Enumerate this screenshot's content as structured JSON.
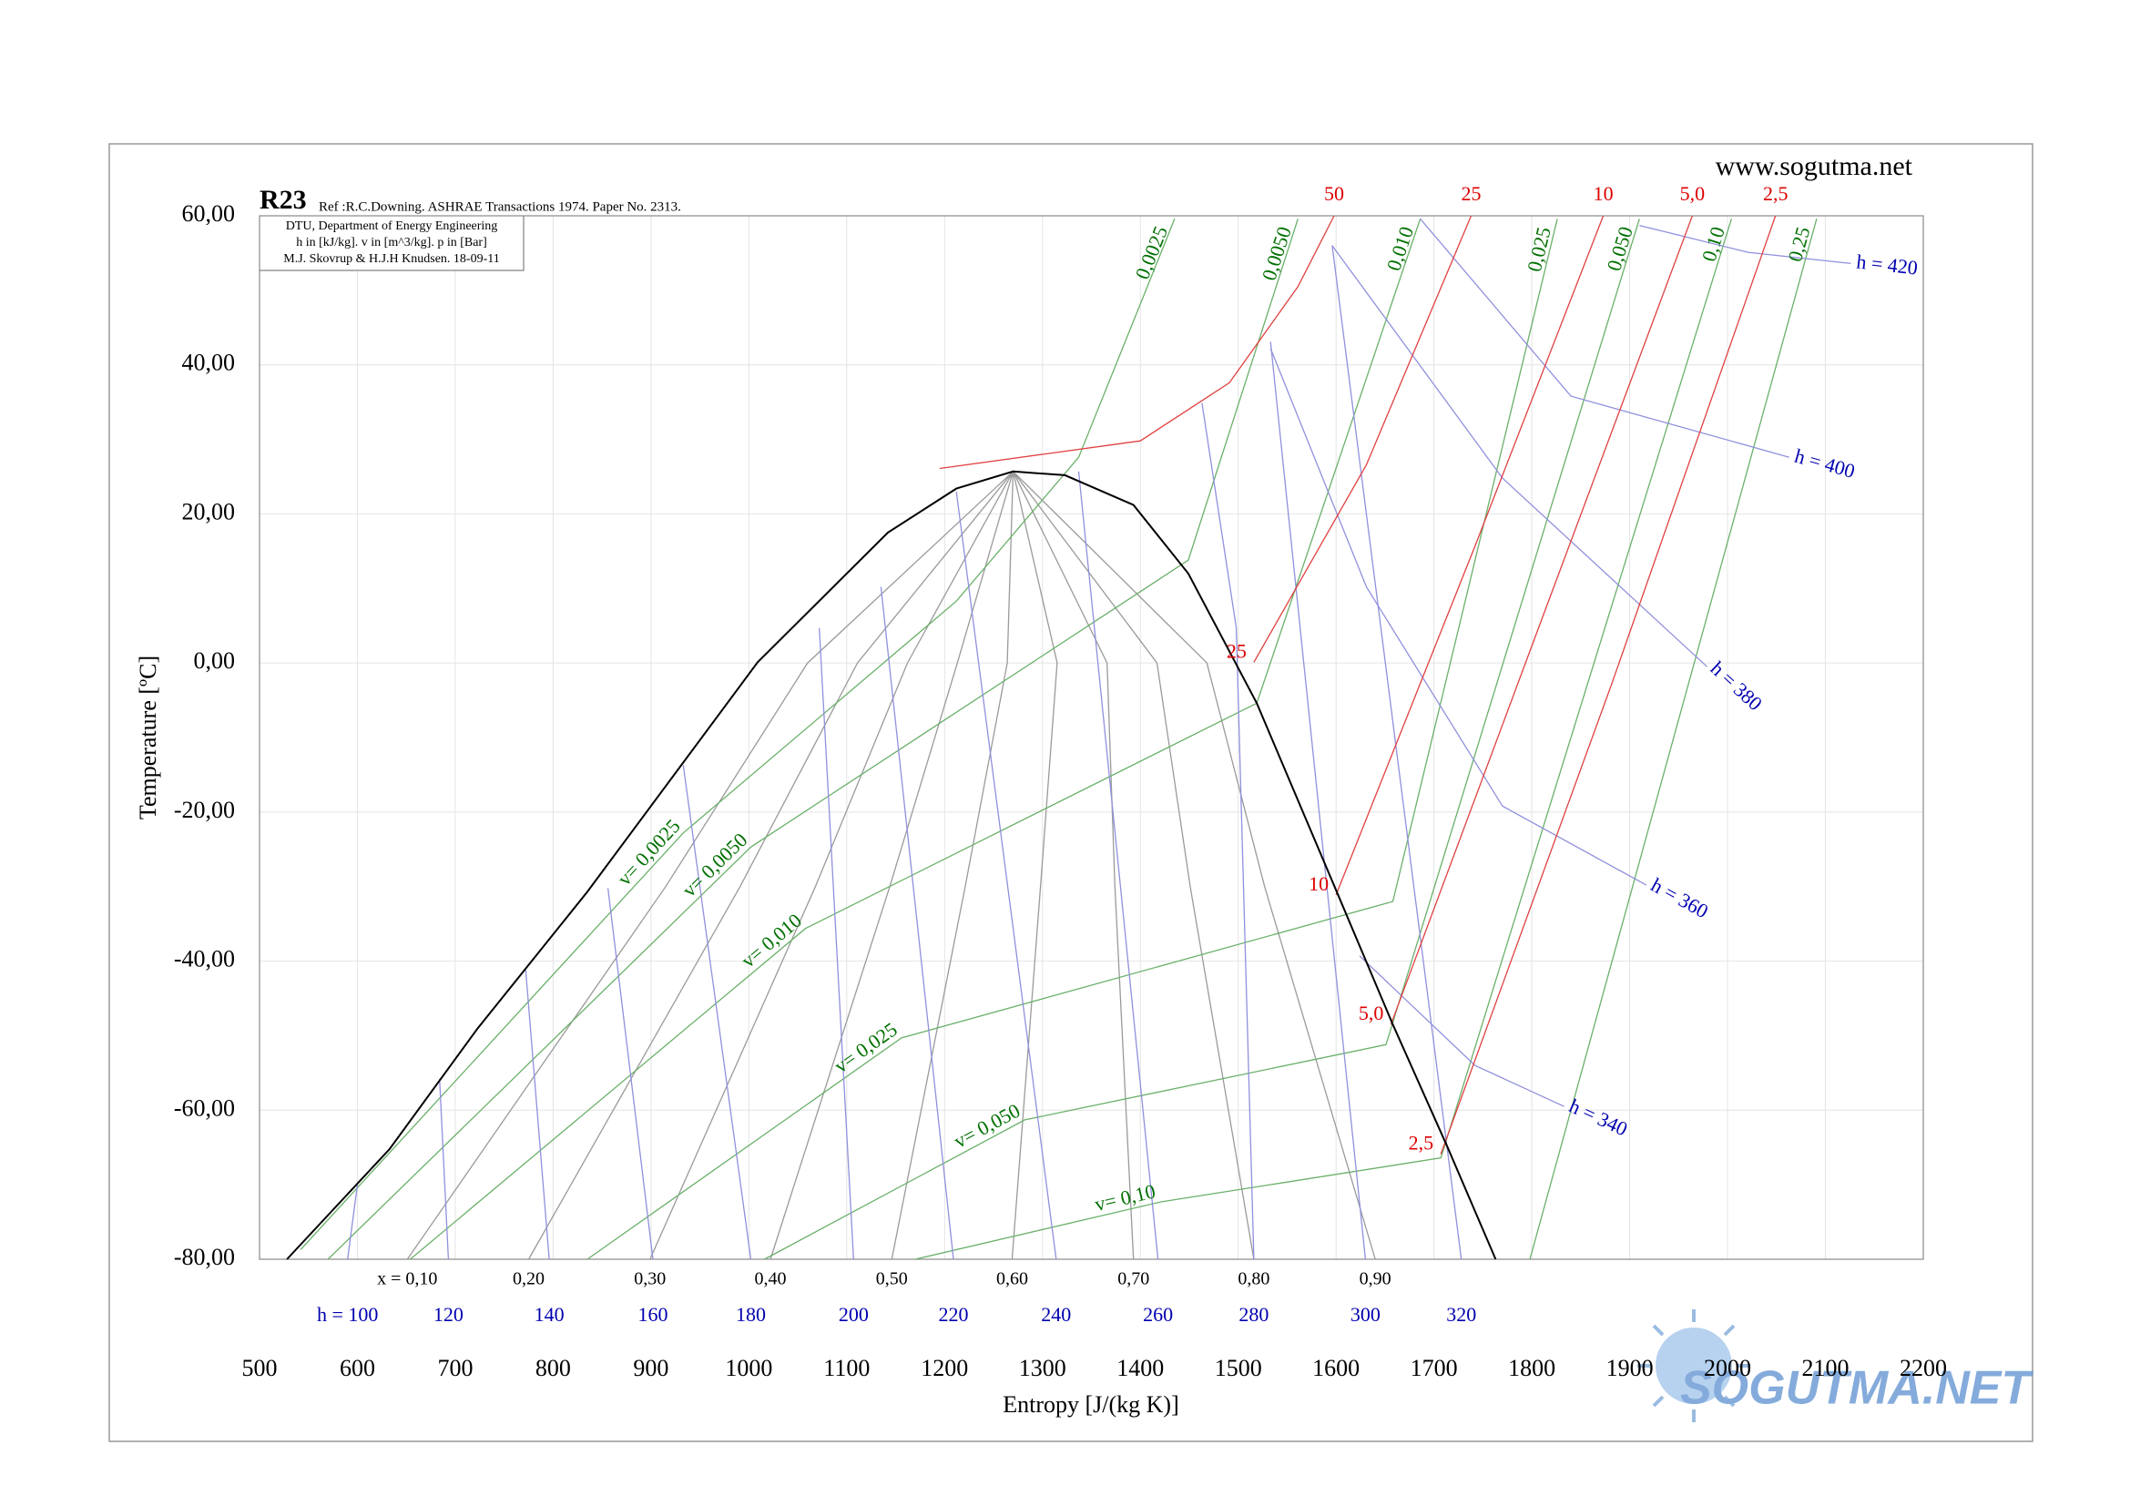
{
  "chart_data": {
    "type": "ts-diagram",
    "title": "R23",
    "reference": "Ref :R.C.Downing. ASHRAE Transactions 1974. Paper No. 2313.",
    "info": [
      "DTU, Department of Energy Engineering",
      "h in [kJ/kg]. v in [m^3/kg]. p in [Bar]",
      "M.J. Skovrup & H.J.H Knudsen. 18-09-11"
    ],
    "website": "www.sogutma.net",
    "watermark": "SOGUTMA.NET",
    "x_label": "Entropy [J/(kg K)]",
    "y_label": "Temperature [ºC]",
    "xlim": [
      500,
      2200
    ],
    "ylim": [
      -80,
      60
    ],
    "xticks": [
      500,
      600,
      700,
      800,
      900,
      1000,
      1100,
      1200,
      1300,
      1400,
      1500,
      1600,
      1700,
      1800,
      1900,
      2000,
      2100,
      2200
    ],
    "yticks": [
      {
        "value": -80,
        "label": "-80,00"
      },
      {
        "value": -60,
        "label": "-60,00"
      },
      {
        "value": -40,
        "label": "-40,00"
      },
      {
        "value": -20,
        "label": "-20,00"
      },
      {
        "value": 0,
        "label": "0,00"
      },
      {
        "value": 20,
        "label": "20,00"
      },
      {
        "value": 40,
        "label": "40,00"
      },
      {
        "value": 60,
        "label": "60,00"
      }
    ],
    "grid": true,
    "saturation": {
      "color": "#000000",
      "x": [
        528,
        633,
        723,
        835,
        1009,
        1142,
        1212,
        1270,
        1323,
        1393,
        1449,
        1519,
        1602,
        1658,
        1714,
        1763
      ],
      "y": [
        -80,
        -65.2,
        -49.0,
        -30.7,
        0.1,
        17.5,
        23.4,
        25.7,
        25.2,
        21.2,
        12.0,
        -5.4,
        -31.1,
        -48.5,
        -65.0,
        -80
      ]
    },
    "quality_lines": {
      "color": "#9a9a9a",
      "label_color": "#000000",
      "lines": [
        {
          "label": "x = 0,10",
          "x": [
            1270,
            1060,
            915,
            651
          ],
          "y": [
            25.7,
            0,
            -30,
            -80
          ]
        },
        {
          "label": "0,20",
          "x": [
            1270,
            1111,
            991,
            775
          ],
          "y": [
            25.7,
            0,
            -30,
            -80
          ]
        },
        {
          "label": "0,30",
          "x": [
            1270,
            1162,
            1068,
            899
          ],
          "y": [
            25.7,
            0,
            -30,
            -80
          ]
        },
        {
          "label": "0,40",
          "x": [
            1270,
            1213,
            1144,
            1022
          ],
          "y": [
            25.7,
            0,
            -30,
            -80
          ]
        },
        {
          "label": "0,50",
          "x": [
            1270,
            1264,
            1221,
            1146
          ],
          "y": [
            25.7,
            0,
            -30,
            -80
          ]
        },
        {
          "label": "0,60",
          "x": [
            1270,
            1315,
            1298,
            1269
          ],
          "y": [
            25.7,
            0,
            -30,
            -80
          ]
        },
        {
          "label": "0,70",
          "x": [
            1270,
            1366,
            1374,
            1393
          ],
          "y": [
            25.7,
            0,
            -30,
            -80
          ]
        },
        {
          "label": "0,80",
          "x": [
            1270,
            1417,
            1451,
            1516
          ],
          "y": [
            25.7,
            0,
            -30,
            -80
          ]
        },
        {
          "label": "0,90",
          "x": [
            1270,
            1468,
            1527,
            1640
          ],
          "y": [
            25.7,
            0,
            -30,
            -80
          ]
        }
      ]
    },
    "isobars": {
      "color": "#e04040",
      "label_color": "#dd0000",
      "lines": [
        {
          "top_label": "50",
          "x": [
            1195,
            1400,
            1491,
            1561,
            1598
          ],
          "y": [
            26.1,
            29.8,
            37.6,
            50.5,
            60
          ]
        },
        {
          "label": "25",
          "top_label": "25",
          "x": [
            1516,
            1631,
            1738
          ],
          "y": [
            0.1,
            26.6,
            60
          ]
        },
        {
          "label": "10",
          "top_label": "10",
          "x": [
            1600,
            1742,
            1873
          ],
          "y": [
            -31.1,
            15.7,
            60
          ]
        },
        {
          "label": "5,0",
          "top_label": "5,0",
          "x": [
            1656,
            1812,
            1964
          ],
          "y": [
            -48.5,
            6.5,
            60
          ]
        },
        {
          "label": "2,5",
          "top_label": "2,5",
          "x": [
            1707,
            1882,
            2049
          ],
          "y": [
            -65.9,
            -2.7,
            60
          ]
        }
      ]
    },
    "isochores": {
      "color": "#6ab06a",
      "label_color": "#007000",
      "lines": [
        {
          "label": "v= 0,0025",
          "top_label": "0,0025",
          "x": [
            542,
            933,
            1212,
            1337,
            1435
          ],
          "y": [
            -78.7,
            -22.8,
            8.3,
            27.6,
            59.6
          ]
        },
        {
          "label": "v= 0,0050",
          "top_label": "0,0050",
          "x": [
            570,
            1002,
            1449,
            1561
          ],
          "y": [
            -80,
            -24.7,
            13.8,
            59.6
          ]
        },
        {
          "label": "v= 0,010",
          "top_label": "0,010",
          "x": [
            654,
            1058,
            1519,
            1686
          ],
          "y": [
            -80,
            -35.6,
            -5.4,
            59.6
          ]
        },
        {
          "label": "v= 0,025",
          "top_label": "0,025",
          "x": [
            835,
            1156,
            1658,
            1826
          ],
          "y": [
            -80,
            -50.3,
            -32,
            59.6
          ]
        },
        {
          "label": "v= 0,050",
          "top_label": "0,050",
          "x": [
            1016,
            1282,
            1651,
            1910
          ],
          "y": [
            -80,
            -61.3,
            -51.2,
            59.6
          ]
        },
        {
          "label": "v= 0,10",
          "top_label": "0,10",
          "x": [
            1170,
            1421,
            1707,
            2004
          ],
          "y": [
            -80,
            -72.3,
            -66.4,
            59.6
          ]
        },
        {
          "top_label": "0,25",
          "x": [
            1798,
            2091
          ],
          "y": [
            -80,
            59.6
          ]
        }
      ]
    },
    "isenthalps": {
      "color": "#9090dd",
      "label_color": "#0000b0",
      "lines": [
        {
          "label": "h = 100",
          "x": [
            600,
            590
          ],
          "y": [
            -70,
            -80
          ]
        },
        {
          "label": "120",
          "x": [
            684,
            693
          ],
          "y": [
            -55.8,
            -80
          ]
        },
        {
          "label": "140",
          "x": [
            772,
            796
          ],
          "y": [
            -41.2,
            -80
          ]
        },
        {
          "label": "160",
          "x": [
            856,
            902
          ],
          "y": [
            -30.2,
            -80
          ]
        },
        {
          "label": "180",
          "x": [
            933,
            1002
          ],
          "y": [
            -13.7,
            -80
          ]
        },
        {
          "label": "200",
          "x": [
            1072,
            1107
          ],
          "y": [
            4.7,
            -80
          ]
        },
        {
          "label": "220",
          "x": [
            1135,
            1209
          ],
          "y": [
            10.2,
            -80
          ]
        },
        {
          "label": "240",
          "x": [
            1212,
            1314
          ],
          "y": [
            23.0,
            -80
          ]
        },
        {
          "label": "260",
          "x": [
            1337,
            1418
          ],
          "y": [
            25.7,
            -80
          ]
        },
        {
          "label": "280",
          "x": [
            1463,
            1498,
            1516
          ],
          "y": [
            34.9,
            4.7,
            -80
          ]
        },
        {
          "label": "300",
          "x": [
            1533,
            1630
          ],
          "y": [
            43.1,
            -80
          ]
        },
        {
          "label": "320",
          "x": [
            1596,
            1728
          ],
          "y": [
            56,
            -80
          ]
        },
        {
          "label": "h = 340",
          "x": [
            1624,
            1742,
            1833
          ],
          "y": [
            -39.3,
            -54,
            -59.5
          ]
        },
        {
          "label": "h = 360",
          "x": [
            1533,
            1631,
            1770,
            1917
          ],
          "y": [
            42.2,
            10.2,
            -19.2,
            -29.8
          ]
        },
        {
          "label": "h = 380",
          "x": [
            1596,
            1770,
            1979
          ],
          "y": [
            56,
            24.8,
            -0.5
          ]
        },
        {
          "label": "h = 400",
          "x": [
            1686,
            1840,
            2063
          ],
          "y": [
            59.6,
            35.8,
            27.6
          ]
        },
        {
          "label": "h = 420",
          "x": [
            1910,
            2021,
            2126
          ],
          "y": [
            58.7,
            55.1,
            53.6
          ]
        }
      ]
    }
  }
}
